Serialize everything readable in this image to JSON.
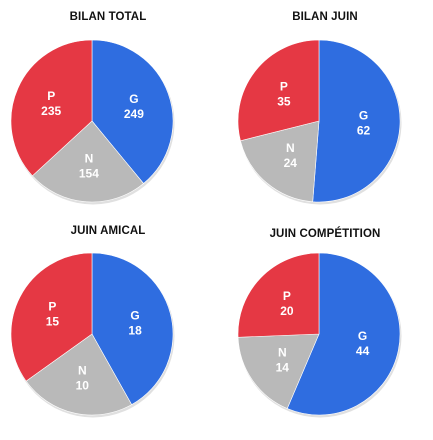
{
  "colors": {
    "G": "#2f6de0",
    "P": "#e53844",
    "N": "#b9b9b9"
  },
  "chart_data": [
    {
      "type": "pie",
      "title": "BILAN TOTAL",
      "slices": [
        {
          "label": "G",
          "value": 249
        },
        {
          "label": "N",
          "value": 154
        },
        {
          "label": "P",
          "value": 235
        }
      ]
    },
    {
      "type": "pie",
      "title": "BILAN JUIN",
      "slices": [
        {
          "label": "G",
          "value": 62
        },
        {
          "label": "N",
          "value": 24
        },
        {
          "label": "P",
          "value": 35
        }
      ]
    },
    {
      "type": "pie",
      "title": "JUIN AMICAL",
      "slices": [
        {
          "label": "G",
          "value": 18
        },
        {
          "label": "N",
          "value": 10
        },
        {
          "label": "P",
          "value": 15
        }
      ]
    },
    {
      "type": "pie",
      "title": "JUIN COMPÉTITION",
      "slices": [
        {
          "label": "G",
          "value": 44
        },
        {
          "label": "N",
          "value": 14
        },
        {
          "label": "P",
          "value": 20
        }
      ]
    }
  ]
}
